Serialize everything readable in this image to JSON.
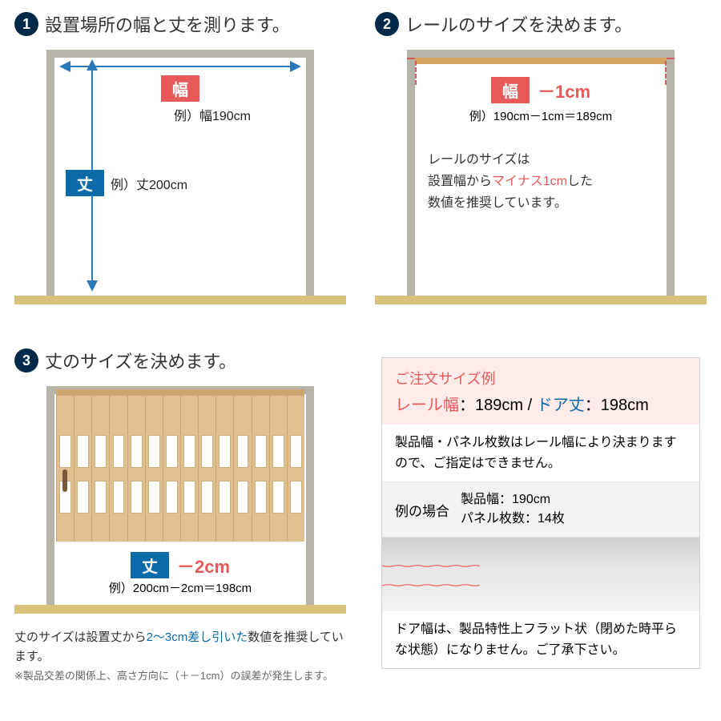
{
  "colors": {
    "navy": "#002a4a",
    "frame": "#b6b3a8",
    "floor": "#d8c17a",
    "blue": "#0b6aa8",
    "red": "#e85a5a",
    "arrowBlue": "#2a78b8",
    "wood": "#d4a561",
    "accordion": "#e0c091"
  },
  "step1": {
    "num": "1",
    "title": "設置場所の幅と丈を測ります。",
    "widthTag": "幅",
    "widthEg": "例）幅190cm",
    "heightTag": "丈",
    "heightEg": "例）丈200cm"
  },
  "step2": {
    "num": "2",
    "title": "レールのサイズを決めます。",
    "widthTag": "幅",
    "minus": "－1cm",
    "eg": "例）190cm－1cm＝189cm",
    "note_pre": "レールのサイズは",
    "note_mid1": "設置幅から",
    "note_red": "マイナス1cm",
    "note_mid2": "した",
    "note_end": "数値を推奨しています。"
  },
  "step3": {
    "num": "3",
    "title": "丈のサイズを決めます。",
    "heightTag": "丈",
    "minus": "－2cm",
    "eg": "例）200cm－2cm＝198cm",
    "foot_pre": "丈のサイズは設置丈から",
    "foot_blue": "2～3cm差し引いた",
    "foot_post": "数値を推奨しています。",
    "disclaimer": "※製品交差の関係上、高さ方向に（＋－1cm）の誤差が発生します。",
    "slat_count": 14
  },
  "result": {
    "heading": "ご注文サイズ例",
    "rail_label": "レール幅",
    "rail_val": "：189cm",
    "sep": " / ",
    "door_label": "ドア丈",
    "door_val": "：198cm",
    "policy": "製品幅・パネル枚数はレール幅により決まりますので、ご指定はできません。",
    "case_label": "例の場合",
    "prod_width_label": "製品幅：",
    "prod_width_val": "190cm",
    "panel_count_label": "パネル枚数：",
    "panel_count_val": "14枚",
    "photo_note": "ドア幅は、製品特性上フラット状（閉めた時平らな状態）になりません。ご了承下さい。"
  }
}
